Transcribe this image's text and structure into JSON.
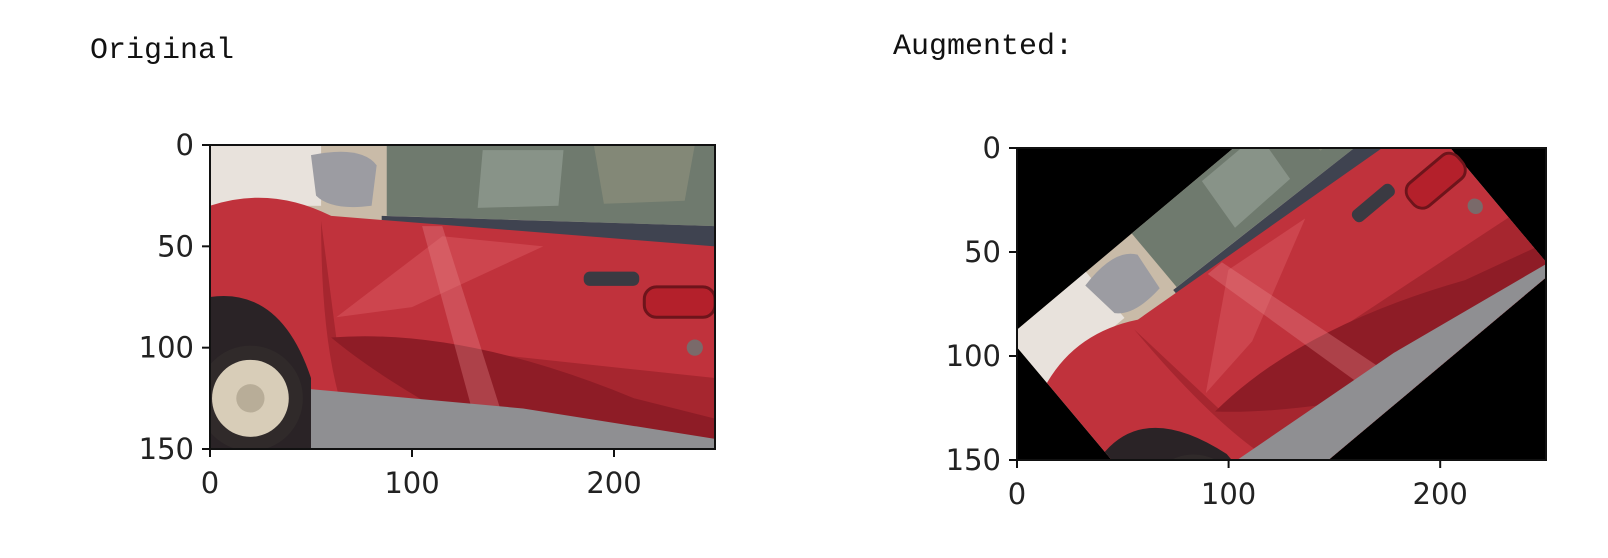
{
  "captions": {
    "left": "Original",
    "right": "Augmented:"
  },
  "colors": {
    "car_red": "#c0323c",
    "car_red_dark": "#8e1c26",
    "background_fill": "#000000",
    "trim_gray": "#8f8f92",
    "window_glass": "#6f7a6e",
    "wheel": "#d8cdb8"
  },
  "chart_data": [
    {
      "type": "image",
      "caption": "Original",
      "title": "",
      "xlabel": "",
      "ylabel": "",
      "xlim": [
        0,
        250
      ],
      "ylim": [
        150,
        0
      ],
      "xticks": [
        0,
        100,
        200
      ],
      "yticks": [
        0,
        50,
        100,
        150
      ],
      "grid": false,
      "content": "photo of red car side door with dent"
    },
    {
      "type": "image",
      "caption": "Augmented:",
      "title": "",
      "xlabel": "",
      "ylabel": "",
      "xlim": [
        0,
        250
      ],
      "ylim": [
        150,
        0
      ],
      "xticks": [
        0,
        100,
        200
      ],
      "yticks": [
        0,
        50,
        100,
        150
      ],
      "grid": false,
      "content": "same photo rotated about -40 degrees with black fill"
    }
  ]
}
